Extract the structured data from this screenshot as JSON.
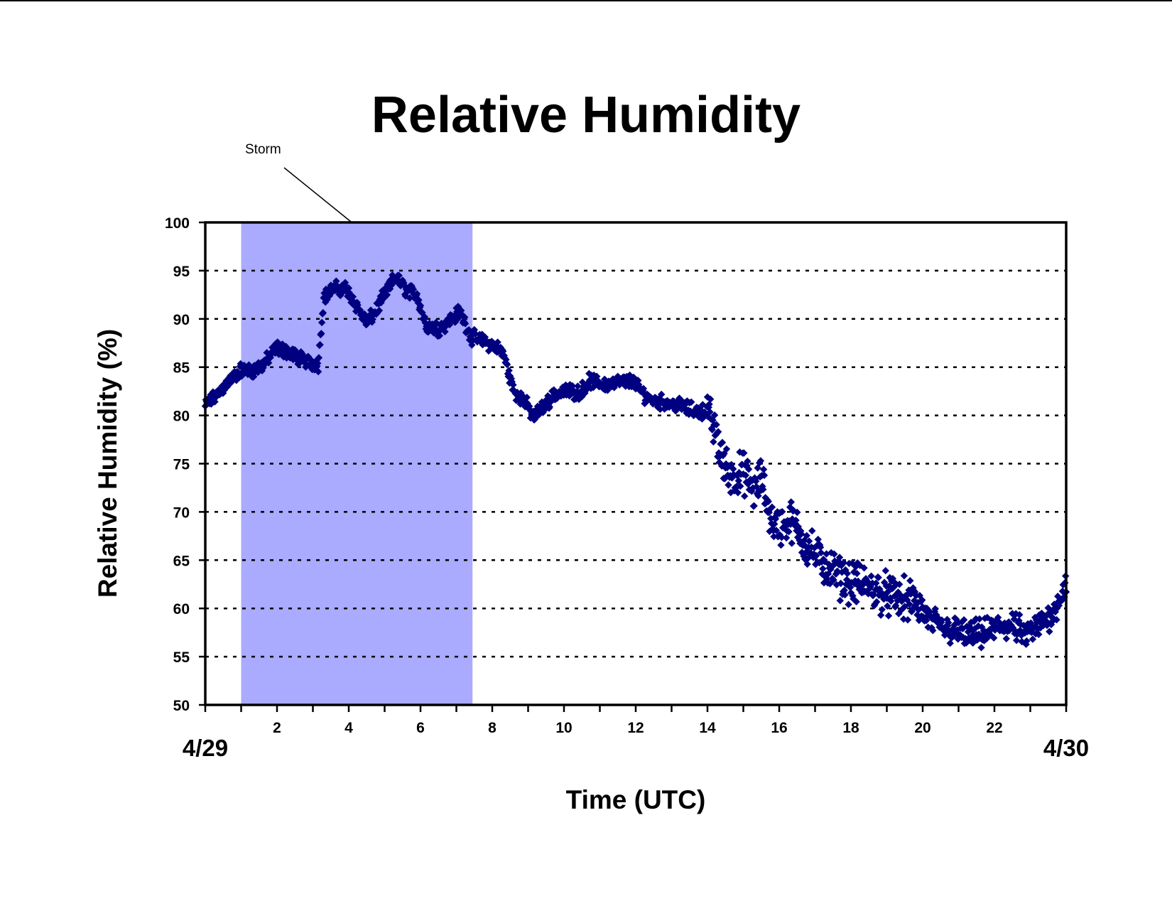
{
  "chart_data": {
    "type": "scatter",
    "title": "Relative Humidity",
    "xlabel": "Time (UTC)",
    "ylabel": "Relative Humidity (%)",
    "xlim": [
      0,
      24
    ],
    "ylim": [
      50,
      100
    ],
    "x_ticks": [
      2,
      4,
      6,
      8,
      10,
      12,
      14,
      16,
      18,
      20,
      22
    ],
    "y_ticks": [
      50,
      55,
      60,
      65,
      70,
      75,
      80,
      85,
      90,
      95,
      100
    ],
    "grid": "horizontal dotted",
    "date_start_label": "4/29",
    "date_end_label": "4/30",
    "storm_band": {
      "label": "Storm",
      "x_start": 1.0,
      "x_end": 7.45,
      "color": "#aaaaff"
    },
    "marker_color": "#000080",
    "series": [
      {
        "trend_points": [
          [
            0.0,
            81.0
          ],
          [
            0.3,
            82.0
          ],
          [
            0.6,
            83.3
          ],
          [
            1.0,
            84.7
          ],
          [
            1.3,
            84.6
          ],
          [
            1.6,
            85.2
          ],
          [
            2.0,
            87.0
          ],
          [
            2.3,
            86.6
          ],
          [
            2.6,
            86.0
          ],
          [
            2.9,
            85.5
          ],
          [
            3.15,
            85.3
          ],
          [
            3.3,
            92.2
          ],
          [
            3.55,
            93.1
          ],
          [
            3.9,
            93.2
          ],
          [
            4.2,
            91.5
          ],
          [
            4.5,
            89.5
          ],
          [
            4.75,
            90.8
          ],
          [
            5.0,
            92.5
          ],
          [
            5.3,
            94.3
          ],
          [
            5.6,
            93.0
          ],
          [
            5.9,
            92.5
          ],
          [
            6.15,
            89.3
          ],
          [
            6.5,
            89.0
          ],
          [
            6.8,
            89.8
          ],
          [
            7.1,
            90.8
          ],
          [
            7.4,
            88.2
          ],
          [
            7.65,
            87.8
          ],
          [
            8.0,
            87.3
          ],
          [
            8.3,
            86.5
          ],
          [
            8.6,
            82.5
          ],
          [
            8.9,
            81.5
          ],
          [
            9.15,
            79.8
          ],
          [
            9.45,
            81.0
          ],
          [
            9.75,
            82.2
          ],
          [
            10.1,
            82.5
          ],
          [
            10.45,
            82.4
          ],
          [
            10.7,
            83.6
          ],
          [
            11.1,
            83.2
          ],
          [
            11.5,
            83.4
          ],
          [
            11.9,
            83.6
          ],
          [
            12.3,
            81.9
          ],
          [
            12.6,
            81.5
          ],
          [
            13.0,
            81.2
          ],
          [
            13.3,
            81.0
          ],
          [
            13.6,
            80.5
          ],
          [
            14.0,
            80.4
          ],
          [
            14.2,
            78.5
          ],
          [
            14.45,
            75.0
          ],
          [
            14.75,
            73.5
          ],
          [
            15.0,
            74.2
          ],
          [
            15.3,
            72.0
          ],
          [
            15.5,
            73.5
          ],
          [
            15.8,
            69.0
          ],
          [
            16.0,
            68.5
          ],
          [
            16.35,
            69.0
          ],
          [
            16.7,
            67.0
          ],
          [
            17.0,
            65.5
          ],
          [
            17.4,
            64.0
          ],
          [
            17.8,
            63.0
          ],
          [
            18.2,
            62.5
          ],
          [
            18.6,
            62.0
          ],
          [
            19.0,
            61.5
          ],
          [
            19.4,
            61.0
          ],
          [
            19.8,
            60.5
          ],
          [
            20.2,
            58.8
          ],
          [
            20.6,
            58.0
          ],
          [
            21.0,
            57.5
          ],
          [
            21.4,
            57.2
          ],
          [
            21.8,
            57.5
          ],
          [
            22.2,
            58.2
          ],
          [
            22.6,
            58.0
          ],
          [
            22.9,
            57.2
          ],
          [
            23.2,
            58.0
          ],
          [
            23.5,
            59.0
          ],
          [
            23.75,
            60.5
          ],
          [
            24.0,
            62.5
          ]
        ]
      }
    ]
  }
}
